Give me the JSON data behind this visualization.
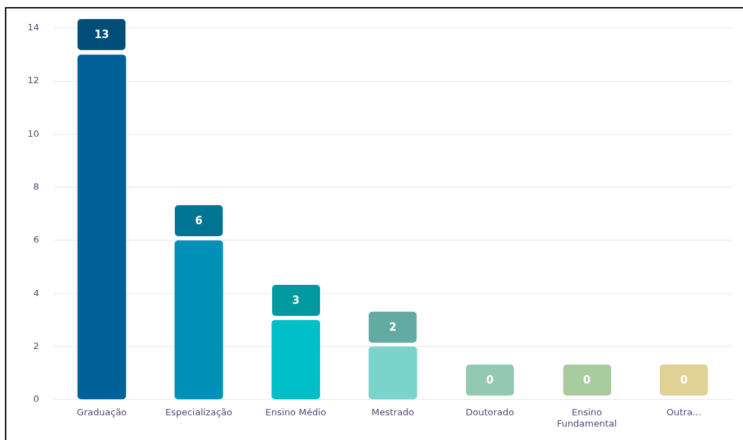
{
  "chart_data": {
    "type": "bar",
    "categories": [
      "Graduação",
      "Especialização",
      "Ensino Médio",
      "Mestrado",
      "Doutorado",
      "Ensino Fundamental",
      "Outra..."
    ],
    "values": [
      13,
      6,
      3,
      2,
      0,
      0,
      0
    ],
    "colors": [
      "#006098",
      "#0091b8",
      "#00bfc8",
      "#7ad4cb",
      "#93c8b3",
      "#a9cc9f",
      "#e0d195"
    ],
    "ylim": [
      0,
      14
    ],
    "yticks": [
      0,
      2,
      4,
      6,
      8,
      10,
      12,
      14
    ],
    "grid": "y",
    "legend": false,
    "data_labels": true
  }
}
